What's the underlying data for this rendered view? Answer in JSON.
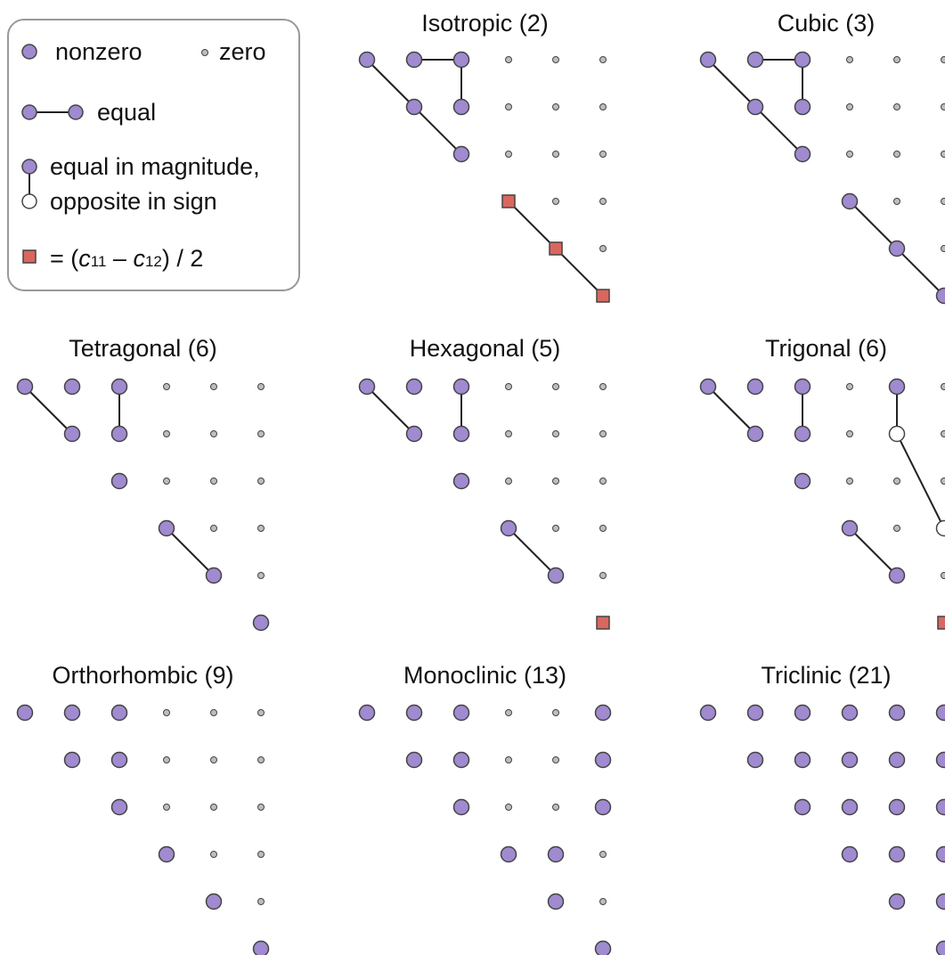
{
  "colors": {
    "nonzero": "#a08ad0",
    "zero": "#bdbdbd",
    "square": "#d9675e",
    "opposite": "#ffffff",
    "stroke": "#444444",
    "line": "#222222",
    "legend_border": "#999999"
  },
  "legend": {
    "nonzero_label": "nonzero",
    "zero_label": "zero",
    "equal_label": "equal",
    "opposite_label_1": "equal in magnitude,",
    "opposite_label_2": "opposite in sign",
    "square_eq": "= (",
    "c11": "c",
    "c11_sub": "11",
    "minus": " – ",
    "c12": "c",
    "c12_sub": "12",
    "square_tail": ") / 2"
  },
  "panels": [
    {
      "title": "Isotropic (2)",
      "cells": [
        [
          "N",
          "N",
          "N",
          "Z",
          "Z",
          "Z"
        ],
        [
          "",
          "N",
          "N",
          "Z",
          "Z",
          "Z"
        ],
        [
          "",
          "",
          "N",
          "Z",
          "Z",
          "Z"
        ],
        [
          "",
          "",
          "",
          "S",
          "Z",
          "Z"
        ],
        [
          "",
          "",
          "",
          "",
          "S",
          "Z"
        ],
        [
          "",
          "",
          "",
          "",
          "",
          "S"
        ]
      ],
      "links": [
        [
          [
            0,
            0
          ],
          [
            1,
            1
          ]
        ],
        [
          [
            1,
            1
          ],
          [
            2,
            2
          ]
        ],
        [
          [
            0,
            1
          ],
          [
            0,
            2
          ]
        ],
        [
          [
            0,
            2
          ],
          [
            1,
            2
          ]
        ],
        [
          [
            3,
            3
          ],
          [
            4,
            4
          ]
        ],
        [
          [
            4,
            4
          ],
          [
            5,
            5
          ]
        ]
      ]
    },
    {
      "title": "Cubic (3)",
      "cells": [
        [
          "N",
          "N",
          "N",
          "Z",
          "Z",
          "Z"
        ],
        [
          "",
          "N",
          "N",
          "Z",
          "Z",
          "Z"
        ],
        [
          "",
          "",
          "N",
          "Z",
          "Z",
          "Z"
        ],
        [
          "",
          "",
          "",
          "N",
          "Z",
          "Z"
        ],
        [
          "",
          "",
          "",
          "",
          "N",
          "Z"
        ],
        [
          "",
          "",
          "",
          "",
          "",
          "N"
        ]
      ],
      "links": [
        [
          [
            0,
            0
          ],
          [
            1,
            1
          ]
        ],
        [
          [
            1,
            1
          ],
          [
            2,
            2
          ]
        ],
        [
          [
            0,
            1
          ],
          [
            0,
            2
          ]
        ],
        [
          [
            0,
            2
          ],
          [
            1,
            2
          ]
        ],
        [
          [
            3,
            3
          ],
          [
            4,
            4
          ]
        ],
        [
          [
            4,
            4
          ],
          [
            5,
            5
          ]
        ]
      ]
    },
    {
      "title": "Tetragonal (6)",
      "cells": [
        [
          "N",
          "N",
          "N",
          "Z",
          "Z",
          "Z"
        ],
        [
          "",
          "N",
          "N",
          "Z",
          "Z",
          "Z"
        ],
        [
          "",
          "",
          "N",
          "Z",
          "Z",
          "Z"
        ],
        [
          "",
          "",
          "",
          "N",
          "Z",
          "Z"
        ],
        [
          "",
          "",
          "",
          "",
          "N",
          "Z"
        ],
        [
          "",
          "",
          "",
          "",
          "",
          "N"
        ]
      ],
      "links": [
        [
          [
            0,
            0
          ],
          [
            1,
            1
          ]
        ],
        [
          [
            0,
            2
          ],
          [
            1,
            2
          ]
        ],
        [
          [
            3,
            3
          ],
          [
            4,
            4
          ]
        ]
      ]
    },
    {
      "title": "Hexagonal (5)",
      "cells": [
        [
          "N",
          "N",
          "N",
          "Z",
          "Z",
          "Z"
        ],
        [
          "",
          "N",
          "N",
          "Z",
          "Z",
          "Z"
        ],
        [
          "",
          "",
          "N",
          "Z",
          "Z",
          "Z"
        ],
        [
          "",
          "",
          "",
          "N",
          "Z",
          "Z"
        ],
        [
          "",
          "",
          "",
          "",
          "N",
          "Z"
        ],
        [
          "",
          "",
          "",
          "",
          "",
          "S"
        ]
      ],
      "links": [
        [
          [
            0,
            0
          ],
          [
            1,
            1
          ]
        ],
        [
          [
            0,
            2
          ],
          [
            1,
            2
          ]
        ],
        [
          [
            3,
            3
          ],
          [
            4,
            4
          ]
        ]
      ]
    },
    {
      "title": "Trigonal (6)",
      "cells": [
        [
          "N",
          "N",
          "N",
          "Z",
          "N",
          "Z"
        ],
        [
          "",
          "N",
          "N",
          "Z",
          "O",
          "Z"
        ],
        [
          "",
          "",
          "N",
          "Z",
          "Z",
          "Z"
        ],
        [
          "",
          "",
          "",
          "N",
          "Z",
          "O"
        ],
        [
          "",
          "",
          "",
          "",
          "N",
          "Z"
        ],
        [
          "",
          "",
          "",
          "",
          "",
          "S"
        ]
      ],
      "links": [
        [
          [
            0,
            0
          ],
          [
            1,
            1
          ]
        ],
        [
          [
            0,
            2
          ],
          [
            1,
            2
          ]
        ],
        [
          [
            3,
            3
          ],
          [
            4,
            4
          ]
        ],
        [
          [
            0,
            4
          ],
          [
            1,
            4
          ]
        ],
        [
          [
            1,
            4
          ],
          [
            3,
            5
          ]
        ]
      ]
    },
    {
      "title": "Orthorhombic (9)",
      "cells": [
        [
          "N",
          "N",
          "N",
          "Z",
          "Z",
          "Z"
        ],
        [
          "",
          "N",
          "N",
          "Z",
          "Z",
          "Z"
        ],
        [
          "",
          "",
          "N",
          "Z",
          "Z",
          "Z"
        ],
        [
          "",
          "",
          "",
          "N",
          "Z",
          "Z"
        ],
        [
          "",
          "",
          "",
          "",
          "N",
          "Z"
        ],
        [
          "",
          "",
          "",
          "",
          "",
          "N"
        ]
      ],
      "links": []
    },
    {
      "title": "Monoclinic (13)",
      "cells": [
        [
          "N",
          "N",
          "N",
          "Z",
          "Z",
          "N"
        ],
        [
          "",
          "N",
          "N",
          "Z",
          "Z",
          "N"
        ],
        [
          "",
          "",
          "N",
          "Z",
          "Z",
          "N"
        ],
        [
          "",
          "",
          "",
          "N",
          "N",
          "Z"
        ],
        [
          "",
          "",
          "",
          "",
          "N",
          "Z"
        ],
        [
          "",
          "",
          "",
          "",
          "",
          "N"
        ]
      ],
      "links": []
    },
    {
      "title": "Triclinic (21)",
      "cells": [
        [
          "N",
          "N",
          "N",
          "N",
          "N",
          "N"
        ],
        [
          "",
          "N",
          "N",
          "N",
          "N",
          "N"
        ],
        [
          "",
          "",
          "N",
          "N",
          "N",
          "N"
        ],
        [
          "",
          "",
          "",
          "N",
          "N",
          "N"
        ],
        [
          "",
          "",
          "",
          "",
          "N",
          "N"
        ],
        [
          "",
          "",
          "",
          "",
          "",
          "N"
        ]
      ],
      "links": []
    }
  ]
}
